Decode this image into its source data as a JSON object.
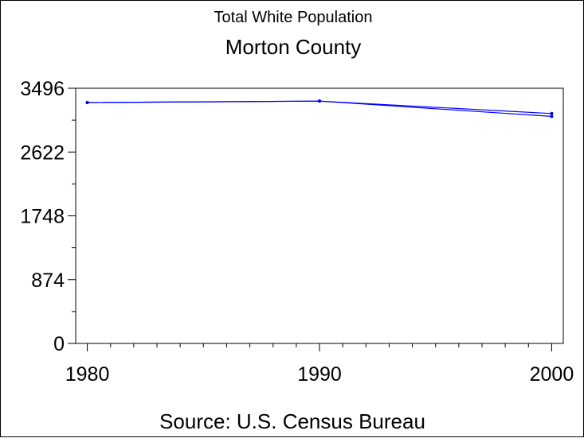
{
  "title": "Total White Population",
  "subtitle": "Morton County",
  "footnote": "Source: U.S. Census Bureau",
  "colors": {
    "line": "#0000ff",
    "axis": "#000000"
  },
  "chart_data": {
    "type": "line",
    "title": "Total White Population",
    "subtitle": "Morton County",
    "xlabel": "",
    "ylabel": "",
    "x": [
      1980,
      1990,
      2000
    ],
    "x_ticks": [
      "1980",
      "1990",
      "2000"
    ],
    "y_ticks": [
      "0",
      "874",
      "1748",
      "2622",
      "3496"
    ],
    "xlim": [
      1979.5,
      2000.5
    ],
    "ylim": [
      0,
      3496
    ],
    "grid": false,
    "series": [
      {
        "values": [
          3300,
          3320,
          3150
        ]
      },
      {
        "values": [
          3300,
          3320,
          3110
        ]
      }
    ],
    "note": "Source: U.S. Census Bureau"
  }
}
